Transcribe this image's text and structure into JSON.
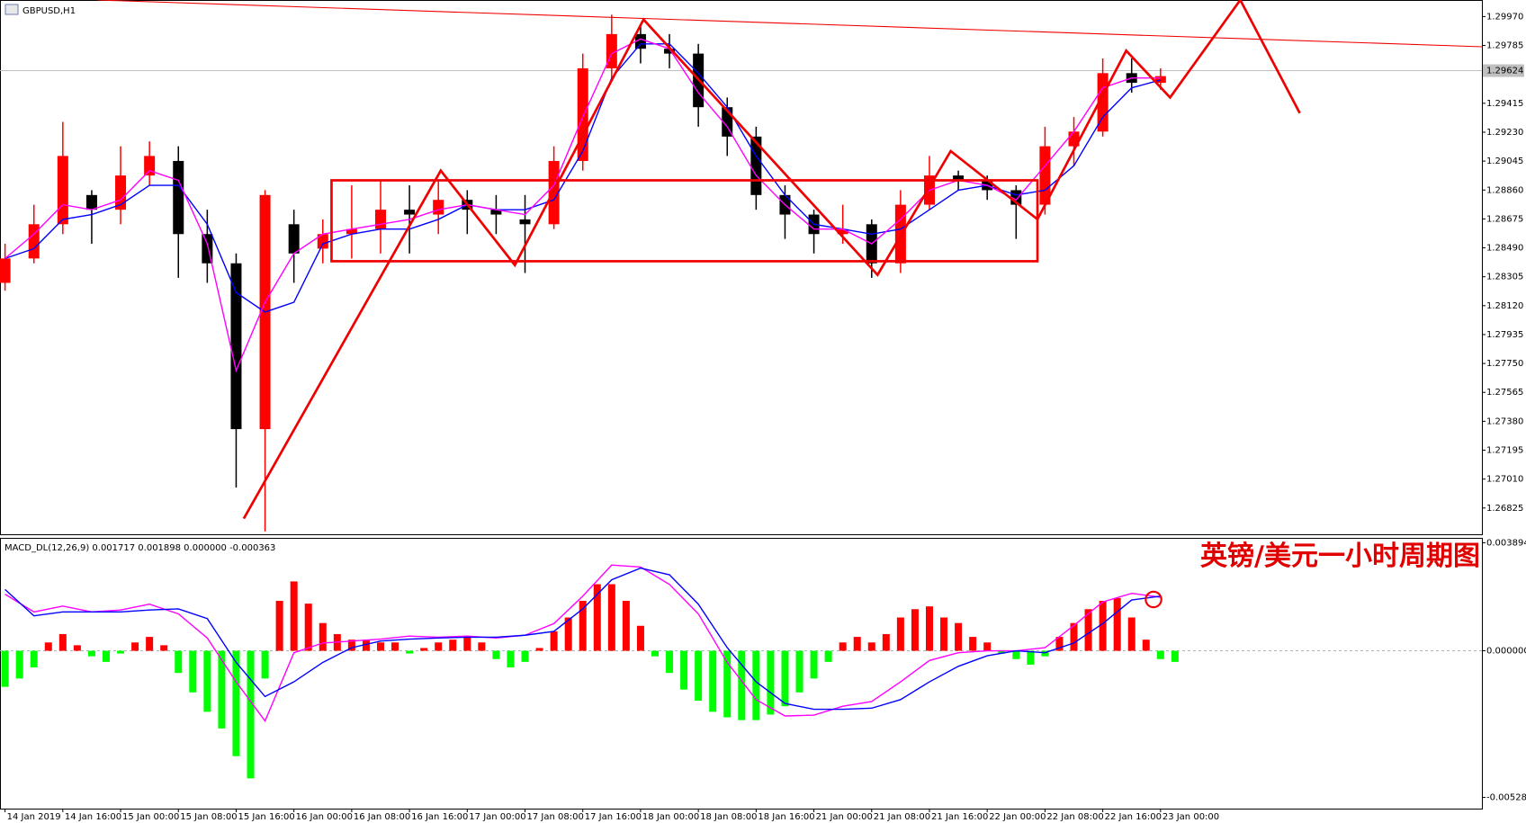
{
  "chart_data": [
    {
      "type": "candlestick",
      "title": "GBPUSD,H1",
      "x": [
        0,
        4,
        8,
        12,
        16,
        20,
        24,
        28,
        32,
        36,
        40,
        44,
        48,
        52,
        56,
        60,
        64,
        68,
        72,
        76,
        80,
        84,
        88,
        92,
        96,
        100,
        104,
        108,
        112,
        116,
        120,
        124,
        128,
        132,
        136,
        140,
        144,
        148,
        152,
        156,
        160
      ],
      "open": [
        1.28266,
        1.28422,
        1.28641,
        1.28828,
        1.28734,
        1.28953,
        1.29046,
        1.28578,
        1.28391,
        1.2733,
        1.28641,
        1.28485,
        1.28578,
        1.2861,
        1.28734,
        1.28703,
        1.28797,
        1.28734,
        1.28672,
        1.28641,
        1.29046,
        1.29639,
        1.29858,
        1.29764,
        1.29733,
        1.2939,
        1.29202,
        1.28828,
        1.28703,
        1.28578,
        1.28641,
        1.28391,
        1.28766,
        1.28953,
        1.28922,
        1.28859,
        1.28766,
        1.2914,
        1.29234,
        1.29608,
        1.29546
      ],
      "high": [
        1.28516,
        1.28766,
        1.29296,
        1.28859,
        1.2914,
        1.29171,
        1.2914,
        1.28734,
        1.28454,
        1.28859,
        1.28734,
        1.28672,
        1.2889,
        1.28922,
        1.2889,
        1.28922,
        1.28859,
        1.28828,
        1.28828,
        1.2914,
        1.29733,
        1.29982,
        1.2992,
        1.29858,
        1.29795,
        1.29452,
        1.29265,
        1.2889,
        1.28734,
        1.28766,
        1.28672,
        1.28859,
        1.29078,
        1.28984,
        1.28953,
        1.2889,
        1.29265,
        1.29327,
        1.29702,
        1.29702,
        1.29639
      ],
      "low": [
        1.28216,
        1.28391,
        1.28578,
        1.28516,
        1.28641,
        1.2889,
        1.28298,
        1.28266,
        1.26956,
        1.26675,
        1.28266,
        1.28391,
        1.28422,
        1.28454,
        1.28454,
        1.28578,
        1.28578,
        1.28578,
        1.28329,
        1.2861,
        1.28984,
        1.29577,
        1.2967,
        1.29639,
        1.29265,
        1.29078,
        1.28734,
        1.28547,
        1.28454,
        1.28516,
        1.28298,
        1.28329,
        1.28734,
        1.28859,
        1.28797,
        1.28547,
        1.28703,
        1.29015,
        1.29202,
        1.29483,
        1.29502
      ],
      "close": [
        1.28422,
        1.28641,
        1.29078,
        1.28734,
        1.28953,
        1.29078,
        1.28578,
        1.28391,
        1.2733,
        1.28828,
        1.28454,
        1.28578,
        1.2861,
        1.28734,
        1.28703,
        1.28797,
        1.28734,
        1.28703,
        1.28641,
        1.29046,
        1.29639,
        1.29858,
        1.29764,
        1.29733,
        1.2939,
        1.29202,
        1.28828,
        1.28703,
        1.28578,
        1.2861,
        1.28391,
        1.28766,
        1.28953,
        1.28922,
        1.28859,
        1.28766,
        1.2914,
        1.29234,
        1.29608,
        1.29546,
        1.29589
      ],
      "up_color": "#ff0000",
      "down_color": "#000000",
      "lines": [
        {
          "color": "#0000ff",
          "values": [
            1.28422,
            1.28485,
            1.28672,
            1.28703,
            1.28766,
            1.2889,
            1.2889,
            1.28641,
            1.28204,
            1.28079,
            1.28142,
            1.28516,
            1.28578,
            1.2861,
            1.2861,
            1.28672,
            1.28766,
            1.28734,
            1.28734,
            1.28797,
            1.29109,
            1.29577,
            1.29795,
            1.29795,
            1.29608,
            1.2939,
            1.29078,
            1.28828,
            1.28641,
            1.2861,
            1.28578,
            1.2861,
            1.28734,
            1.28859,
            1.2889,
            1.28828,
            1.28859,
            1.29015,
            1.29327,
            1.29514,
            1.29564
          ]
        },
        {
          "color": "#ff00ff",
          "values": [
            1.28422,
            1.28578,
            1.28766,
            1.28734,
            1.28797,
            1.28984,
            1.28922,
            1.28516,
            1.27705,
            1.28142,
            1.28454,
            1.28578,
            1.2861,
            1.28641,
            1.28672,
            1.28734,
            1.28766,
            1.28734,
            1.28703,
            1.2889,
            1.29327,
            1.29733,
            1.29826,
            1.29764,
            1.29483,
            1.29265,
            1.28953,
            1.28766,
            1.2861,
            1.2861,
            1.28516,
            1.28672,
            1.28859,
            1.28922,
            1.2889,
            1.28797,
            1.29015,
            1.29234,
            1.29514,
            1.29577,
            1.29577
          ]
        }
      ],
      "current_price": 1.29624,
      "xlim": [
        -0.7,
        204.5
      ],
      "ylim": [
        1.26657,
        1.30076
      ],
      "yticks": [
        {
          "value": 1.2997,
          "label": "1.29970"
        },
        {
          "value": 1.29785,
          "label": "1.29785"
        },
        {
          "value": 1.296,
          "label": "1.29600"
        },
        {
          "value": 1.29415,
          "label": "1.29415"
        },
        {
          "value": 1.2923,
          "label": "1.29230"
        },
        {
          "value": 1.29045,
          "label": "1.29045"
        },
        {
          "value": 1.2886,
          "label": "1.28860"
        },
        {
          "value": 1.28675,
          "label": "1.28675"
        },
        {
          "value": 1.2849,
          "label": "1.28490"
        },
        {
          "value": 1.28305,
          "label": "1.28305"
        },
        {
          "value": 1.2812,
          "label": "1.28120"
        },
        {
          "value": 1.27935,
          "label": "1.27935"
        },
        {
          "value": 1.2775,
          "label": "1.27750"
        },
        {
          "value": 1.27565,
          "label": "1.27565"
        },
        {
          "value": 1.2738,
          "label": "1.27380"
        },
        {
          "value": 1.27195,
          "label": "1.27195"
        },
        {
          "value": 1.2701,
          "label": "1.27010"
        },
        {
          "value": 1.26825,
          "label": "1.26825"
        }
      ]
    },
    {
      "type": "macd",
      "title": "MACD_DL(12,26,9) 0.001717 0.001898 0.000000 -0.000363",
      "x": [
        0,
        2,
        4,
        6,
        8,
        10,
        12,
        14,
        16,
        18,
        20,
        22,
        24,
        26,
        28,
        30,
        32,
        34,
        36,
        38,
        40,
        42,
        44,
        46,
        48,
        50,
        52,
        54,
        56,
        58,
        60,
        62,
        64,
        66,
        68,
        70,
        72,
        74,
        76,
        78,
        80,
        82,
        84,
        86,
        88,
        90,
        92,
        94,
        96,
        98,
        100,
        102,
        104,
        106,
        108,
        110,
        112,
        114,
        116,
        118,
        120,
        122,
        124,
        126,
        128,
        130,
        132,
        134,
        136,
        138,
        140,
        142,
        144,
        146,
        148,
        150,
        152,
        154,
        156,
        158,
        160,
        162
      ],
      "values": [
        -0.0013,
        -0.001,
        -0.0006,
        0.0003,
        0.0006,
        0.0002,
        -0.0002,
        -0.0004,
        -0.0001,
        0.0003,
        0.0005,
        0.0002,
        -0.0008,
        -0.0015,
        -0.0022,
        -0.0028,
        -0.0038,
        -0.0046,
        -0.001,
        0.0018,
        0.0025,
        0.0017,
        0.001,
        0.0006,
        0.0004,
        0.0004,
        0.0003,
        0.0003,
        -0.0001,
        0.0001,
        0.0003,
        0.0004,
        0.0005,
        0.0003,
        -0.0003,
        -0.0006,
        -0.0004,
        0.0001,
        0.0007,
        0.0012,
        0.0018,
        0.0024,
        0.0024,
        0.0018,
        0.0009,
        -0.0002,
        -0.0008,
        -0.0014,
        -0.0018,
        -0.0022,
        -0.0024,
        -0.0025,
        -0.0025,
        -0.0023,
        -0.002,
        -0.0015,
        -0.001,
        -0.0004,
        0.0003,
        0.0005,
        0.0003,
        0.0006,
        0.0012,
        0.0015,
        0.0016,
        0.0012,
        0.001,
        0.0005,
        0.0003,
        -0.0001,
        -0.0003,
        -0.0005,
        -0.0002,
        0.0005,
        0.001,
        0.0015,
        0.0018,
        0.0019,
        0.0012,
        0.0004,
        -0.0003,
        -0.0004
      ],
      "up_color": "#ff0000",
      "down_color": "#00ff00",
      "lines": [
        {
          "color": "#ff00ff",
          "x": [
            0,
            4,
            8,
            12,
            16,
            20,
            24,
            28,
            32,
            36,
            40,
            44,
            48,
            52,
            56,
            60,
            64,
            68,
            72,
            76,
            80,
            84,
            88,
            92,
            96,
            100,
            104,
            108,
            112,
            116,
            120,
            124,
            128,
            132,
            136,
            140,
            144,
            148,
            152,
            156,
            160
          ],
          "values": [
            0.00204,
            0.0014,
            0.00161,
            0.0014,
            0.00147,
            0.00168,
            0.00133,
            0.00046,
            -0.00112,
            -0.00253,
            -7e-05,
            0.00028,
            0.00035,
            0.00042,
            0.00053,
            0.00049,
            0.00053,
            0.00046,
            0.00056,
            0.00098,
            0.00197,
            0.00309,
            0.00302,
            0.00239,
            0.00133,
            -0.00042,
            -0.00176,
            -0.00235,
            -0.00232,
            -0.002,
            -0.00183,
            -0.00112,
            -0.00035,
            -7e-05,
            0,
            0,
            0.00011,
            0.00091,
            0.00176,
            0.00207,
            0.00193
          ]
        },
        {
          "color": "#0000ff",
          "x": [
            0,
            4,
            8,
            12,
            16,
            20,
            24,
            28,
            32,
            36,
            40,
            44,
            48,
            52,
            56,
            60,
            64,
            68,
            72,
            76,
            80,
            84,
            88,
            92,
            96,
            100,
            104,
            108,
            112,
            116,
            120,
            124,
            128,
            132,
            136,
            140,
            144,
            148,
            152,
            156,
            160
          ],
          "values": [
            0.00221,
            0.00126,
            0.0014,
            0.0014,
            0.0014,
            0.00147,
            0.00151,
            0.00116,
            -0.00042,
            -0.00165,
            -0.00112,
            -0.00042,
            0.00011,
            0.00035,
            0.00042,
            0.00046,
            0.00049,
            0.00049,
            0.00056,
            0.0007,
            0.00151,
            0.00256,
            0.00298,
            0.00274,
            0.00168,
            0.00011,
            -0.00112,
            -0.0019,
            -0.00211,
            -0.00211,
            -0.00207,
            -0.00176,
            -0.00112,
            -0.00056,
            -0.00018,
            0,
            -7e-05,
            0.00028,
            0.00098,
            0.00183,
            0.00197
          ]
        }
      ],
      "xlim": [
        -0.7,
        204.5
      ],
      "ylim": [
        -0.00569,
        0.00407
      ],
      "yticks": [
        0.003894,
        {
          "value": 0,
          "label": "0.000000"
        },
        -0.005286
      ],
      "xticks": [
        {
          "value": 0,
          "label": "14 Jan 2019"
        },
        {
          "value": 8,
          "label": "14 Jan 16:00"
        },
        {
          "value": 16,
          "label": "15 Jan 00:00"
        },
        {
          "value": 24,
          "label": "15 Jan 08:00"
        },
        {
          "value": 32,
          "label": "15 Jan 16:00"
        },
        {
          "value": 40,
          "label": "16 Jan 00:00"
        },
        {
          "value": 48,
          "label": "16 Jan 08:00"
        },
        {
          "value": 56,
          "label": "16 Jan 16:00"
        },
        {
          "value": 64,
          "label": "17 Jan 00:00"
        },
        {
          "value": 72,
          "label": "17 Jan 08:00"
        },
        {
          "value": 80,
          "label": "17 Jan 16:00"
        },
        {
          "value": 88,
          "label": "18 Jan 00:00"
        },
        {
          "value": 96,
          "label": "18 Jan 08:00"
        },
        {
          "value": 104,
          "label": "18 Jan 16:00"
        },
        {
          "value": 112,
          "label": "21 Jan 00:00"
        },
        {
          "value": 120,
          "label": "21 Jan 08:00"
        },
        {
          "value": 128,
          "label": "21 Jan 16:00"
        },
        {
          "value": 136,
          "label": "22 Jan 00:00"
        },
        {
          "value": 144,
          "label": "22 Jan 08:00"
        },
        {
          "value": 152,
          "label": "22 Jan 16:00"
        },
        {
          "value": 160,
          "label": "23 Jan 00:00"
        }
      ]
    }
  ],
  "annotation": "英镑/美元一小时周期图"
}
